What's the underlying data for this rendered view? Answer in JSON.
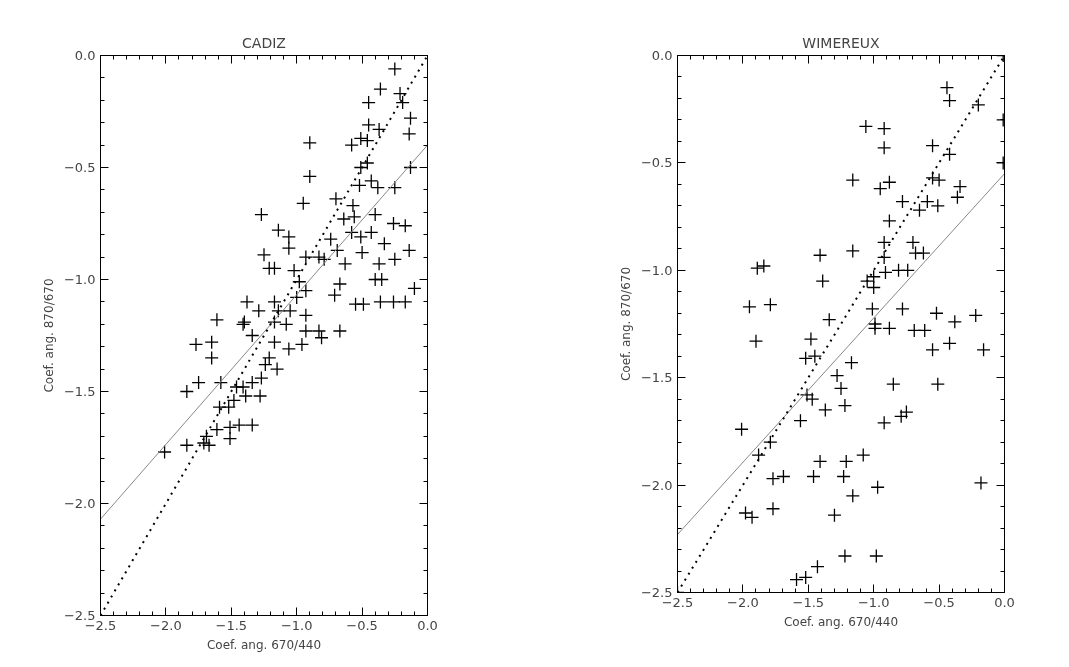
{
  "chart_data": [
    {
      "type": "scatter",
      "title": "CADIZ",
      "xlabel": "Coef. ang. 670/440",
      "ylabel": "Coef. ang. 870/670",
      "xlim": [
        -2.5,
        0.0
      ],
      "ylim": [
        -2.5,
        0.0
      ],
      "xticks": [
        {
          "value": -2.5,
          "label": "−2.5"
        },
        {
          "value": -2.0,
          "label": "−2.0"
        },
        {
          "value": -1.5,
          "label": "−1.5"
        },
        {
          "value": -1.0,
          "label": "−1.0"
        },
        {
          "value": -0.5,
          "label": "−0.5"
        },
        {
          "value": 0.0,
          "label": "0.0"
        }
      ],
      "yticks": [
        {
          "value": -2.5,
          "label": "−2.5"
        },
        {
          "value": -2.0,
          "label": "−2.0"
        },
        {
          "value": -1.5,
          "label": "−1.5"
        },
        {
          "value": -1.0,
          "label": "−1.0"
        },
        {
          "value": -0.5,
          "label": "−0.5"
        },
        {
          "value": 0.0,
          "label": "0.0"
        }
      ],
      "series": [
        {
          "marker": "cross",
          "color": "#000000",
          "x": [
            -0.25,
            -0.36,
            -0.45,
            -0.21,
            -0.19,
            -0.13,
            -0.14,
            -0.37,
            -0.45,
            -0.46,
            -0.51,
            -0.58,
            -0.9,
            -0.9,
            -0.95,
            -1.27,
            -0.51,
            -0.46,
            -0.52,
            -0.43,
            -0.38,
            -0.25,
            -0.13,
            -0.7,
            -0.57,
            -0.64,
            -0.56,
            -0.4,
            -0.26,
            -0.17,
            -0.58,
            -0.51,
            -0.43,
            -0.33,
            -0.5,
            -0.14,
            -0.25,
            -0.37,
            -0.4,
            -0.35,
            -0.63,
            -0.74,
            -0.69,
            -0.83,
            -0.79,
            -0.93,
            -1.14,
            -1.06,
            -1.06,
            -1.25,
            -1.21,
            -1.17,
            -1.02,
            -0.98,
            -0.93,
            -1.0,
            -0.67,
            -0.71,
            -0.55,
            -0.49,
            -0.36,
            -0.26,
            -0.17,
            -0.1,
            -1.38,
            -1.29,
            -1.17,
            -1.14,
            -1.61,
            -1.4,
            -1.05,
            -0.93,
            -0.83,
            -1.41,
            -1.34,
            -1.17,
            -1.08,
            -0.93,
            -0.67,
            -0.81,
            -0.96,
            -1.06,
            -1.17,
            -1.77,
            -1.65,
            -1.65,
            -1.21,
            -1.24,
            -1.15,
            -1.27,
            -1.34,
            -1.41,
            -1.84,
            -1.75,
            -1.58,
            -1.46,
            -1.28,
            -1.48,
            -1.39,
            -1.59,
            -1.52,
            -1.34,
            -1.44,
            -1.51,
            -1.61,
            -1.69,
            -1.51,
            -1.71,
            -1.67,
            -1.84,
            -2.01
          ],
          "values": [
            -0.06,
            -0.15,
            -0.21,
            -0.17,
            -0.21,
            -0.28,
            -0.35,
            -0.33,
            -0.31,
            -0.38,
            -0.37,
            -0.4,
            -0.39,
            -0.54,
            -0.66,
            -0.71,
            -0.5,
            -0.48,
            -0.58,
            -0.56,
            -0.59,
            -0.59,
            -0.5,
            -0.64,
            -0.67,
            -0.73,
            -0.72,
            -0.71,
            -0.75,
            -0.76,
            -0.79,
            -0.81,
            -0.79,
            -0.84,
            -0.88,
            -0.87,
            -0.91,
            -0.93,
            -1.0,
            -1.0,
            -0.93,
            -0.82,
            -0.87,
            -0.9,
            -0.91,
            -0.9,
            -0.78,
            -0.81,
            -0.86,
            -0.89,
            -0.95,
            -0.95,
            -0.96,
            -1.01,
            -1.05,
            -1.08,
            -1.02,
            -1.07,
            -1.11,
            -1.11,
            -1.1,
            -1.1,
            -1.1,
            -1.04,
            -1.1,
            -1.14,
            -1.1,
            -1.14,
            -1.18,
            -1.19,
            -1.14,
            -1.16,
            -1.23,
            -1.2,
            -1.25,
            -1.19,
            -1.2,
            -1.23,
            -1.23,
            -1.26,
            -1.29,
            -1.31,
            -1.28,
            -1.29,
            -1.28,
            -1.35,
            -1.35,
            -1.38,
            -1.4,
            -1.44,
            -1.46,
            -1.48,
            -1.5,
            -1.46,
            -1.46,
            -1.48,
            -1.52,
            -1.54,
            -1.52,
            -1.57,
            -1.57,
            -1.65,
            -1.65,
            -1.66,
            -1.67,
            -1.7,
            -1.71,
            -1.73,
            -1.74,
            -1.74,
            -1.77
          ]
        },
        {
          "type": "line",
          "line_style": "solid",
          "color": "#888888",
          "x": [
            -2.5,
            0.0
          ],
          "values": [
            -2.07,
            -0.4
          ]
        },
        {
          "type": "line",
          "line_style": "dotted",
          "color": "#000000",
          "x": [
            -2.5,
            0.0
          ],
          "values": [
            -2.5,
            0.0
          ]
        }
      ]
    },
    {
      "type": "scatter",
      "title": "WIMEREUX",
      "xlabel": "Coef. ang. 670/440",
      "ylabel": "Coef. ang. 870/670",
      "xlim": [
        -2.5,
        0.0
      ],
      "ylim": [
        -2.5,
        0.0
      ],
      "xticks": [
        {
          "value": -2.5,
          "label": "−2.5"
        },
        {
          "value": -2.0,
          "label": "−2.0"
        },
        {
          "value": -1.5,
          "label": "−1.5"
        },
        {
          "value": -1.0,
          "label": "−1.0"
        },
        {
          "value": -0.5,
          "label": "−0.5"
        },
        {
          "value": 0.0,
          "label": "0.0"
        }
      ],
      "yticks": [
        {
          "value": -2.5,
          "label": "−2.5"
        },
        {
          "value": -2.0,
          "label": "−2.0"
        },
        {
          "value": -1.5,
          "label": "−1.5"
        },
        {
          "value": -1.0,
          "label": "−1.0"
        },
        {
          "value": -0.5,
          "label": "−0.5"
        },
        {
          "value": 0.0,
          "label": "0.0"
        }
      ],
      "series": [
        {
          "marker": "cross",
          "color": "#000000",
          "x": [
            -0.44,
            -0.42,
            -0.2,
            -1.06,
            -0.92,
            -0.92,
            -0.55,
            -0.42,
            -1.16,
            -0.95,
            -0.88,
            -0.55,
            -0.5,
            -0.34,
            -0.36,
            -0.78,
            -0.65,
            -0.59,
            -0.51,
            -0.88,
            -0.92,
            -0.7,
            -0.68,
            -0.62,
            -0.92,
            -1.41,
            -1.16,
            -1.39,
            -1.89,
            -1.84,
            -1.05,
            -1.0,
            -0.91,
            -0.81,
            -0.74,
            -1.0,
            -1.95,
            -1.79,
            -1.01,
            -0.78,
            -0.52,
            -0.38,
            -0.22,
            -1.34,
            -0.99,
            -0.99,
            -0.88,
            -0.69,
            -0.61,
            -0.55,
            -0.42,
            -0.16,
            -1.9,
            -1.48,
            -1.52,
            -1.45,
            -1.17,
            -1.28,
            -1.25,
            -1.22,
            -1.51,
            -1.47,
            -1.37,
            -1.56,
            -0.85,
            -0.51,
            -0.92,
            -0.79,
            -0.75,
            -2.01,
            -1.79,
            -1.88,
            -1.77,
            -1.69,
            -1.41,
            -1.46,
            -1.21,
            -1.23,
            -1.08,
            -1.16,
            -0.97,
            -0.18,
            -1.98,
            -1.93,
            -1.77,
            -1.3,
            -1.22,
            -0.98,
            -1.43,
            -1.59,
            -1.52,
            -2.5,
            -0.01,
            -0.01,
            -0.01
          ],
          "values": [
            -0.15,
            -0.21,
            -0.23,
            -0.33,
            -0.34,
            -0.43,
            -0.42,
            -0.46,
            -0.58,
            -0.62,
            -0.59,
            -0.57,
            -0.58,
            -0.61,
            -0.66,
            -0.68,
            -0.72,
            -0.68,
            -0.7,
            -0.77,
            -0.87,
            -0.87,
            -0.92,
            -0.92,
            -0.94,
            -0.93,
            -0.91,
            -1.05,
            -0.99,
            -0.98,
            -1.05,
            -1.03,
            -1.01,
            -1.0,
            -1.0,
            -1.08,
            -1.17,
            -1.16,
            -1.18,
            -1.18,
            -1.2,
            -1.24,
            -1.21,
            -1.23,
            -1.25,
            -1.27,
            -1.27,
            -1.28,
            -1.28,
            -1.37,
            -1.34,
            -1.37,
            -1.33,
            -1.32,
            -1.41,
            -1.4,
            -1.43,
            -1.49,
            -1.55,
            -1.63,
            -1.58,
            -1.6,
            -1.65,
            -1.7,
            -1.53,
            -1.53,
            -1.71,
            -1.68,
            -1.66,
            -1.74,
            -1.8,
            -1.86,
            -1.97,
            -1.96,
            -1.89,
            -1.96,
            -1.89,
            -1.96,
            -1.86,
            -2.05,
            -2.01,
            -1.99,
            -2.13,
            -2.15,
            -2.11,
            -2.14,
            -2.33,
            -2.33,
            -2.38,
            -2.44,
            -2.43,
            -2.5,
            0.0,
            -0.3,
            -0.5
          ]
        },
        {
          "type": "line",
          "line_style": "solid",
          "color": "#888888",
          "x": [
            -2.5,
            0.0
          ],
          "values": [
            -2.23,
            -0.55
          ]
        },
        {
          "type": "line",
          "line_style": "dotted",
          "color": "#000000",
          "x": [
            -2.5,
            0.0
          ],
          "values": [
            -2.5,
            0.0
          ]
        }
      ]
    }
  ]
}
